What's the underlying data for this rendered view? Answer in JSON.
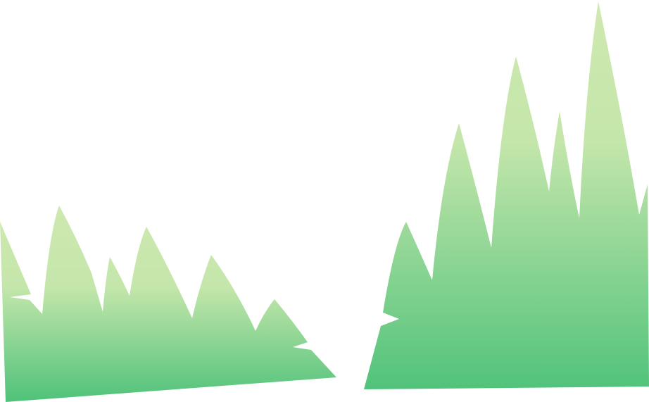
{
  "illustration": {
    "name": "green-grass-peaks",
    "colors": {
      "background": "#ffffff",
      "gradient_top": "#cfe9b0",
      "gradient_mid": "#c4e6ab",
      "gradient_bottom": "#4fc27a"
    },
    "shapes": [
      {
        "name": "left-grass-cluster"
      },
      {
        "name": "right-grass-cluster"
      }
    ]
  }
}
